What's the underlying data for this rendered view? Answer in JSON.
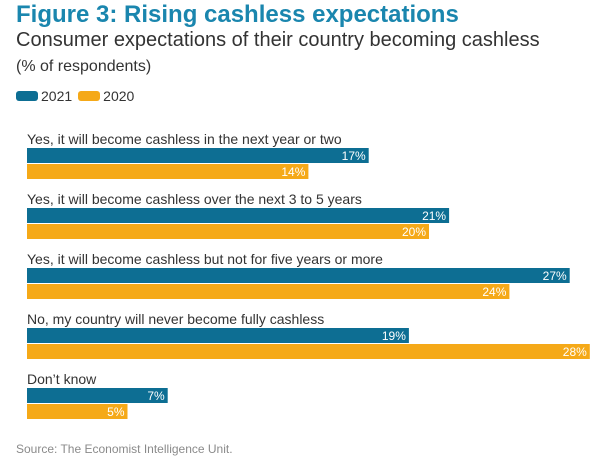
{
  "header": {
    "title": "Figure 3: Rising cashless expectations",
    "subtitle": "Consumer expectations of their country becoming cashless",
    "unit": "(% of respondents)"
  },
  "source": "Source: The Economist Intelligence Unit.",
  "colors": {
    "s2021": "#0d6e93",
    "s2020": "#f5a918"
  },
  "chart_data": {
    "type": "bar",
    "orientation": "horizontal",
    "title": "Figure 3: Rising cashless expectations",
    "subtitle": "Consumer expectations of their country becoming cashless",
    "unit_label": "(% of respondents)",
    "xlim": [
      0,
      28
    ],
    "grid": false,
    "legend_position": "top-left",
    "categories": [
      "Yes, it will become cashless in the next year or two",
      "Yes, it will become cashless over the next 3 to 5 years",
      "Yes, it will become cashless but not for five years or more",
      "No, my country will never become fully cashless",
      "Don’t know"
    ],
    "series": [
      {
        "name": "2021",
        "values": [
          17,
          21,
          27,
          19,
          7
        ],
        "labels": [
          "17%",
          "21%",
          "27%",
          "19%",
          "7%"
        ]
      },
      {
        "name": "2020",
        "values": [
          14,
          20,
          24,
          28,
          5
        ],
        "labels": [
          "14%",
          "20%",
          "24%",
          "28%",
          "5%"
        ]
      }
    ]
  }
}
